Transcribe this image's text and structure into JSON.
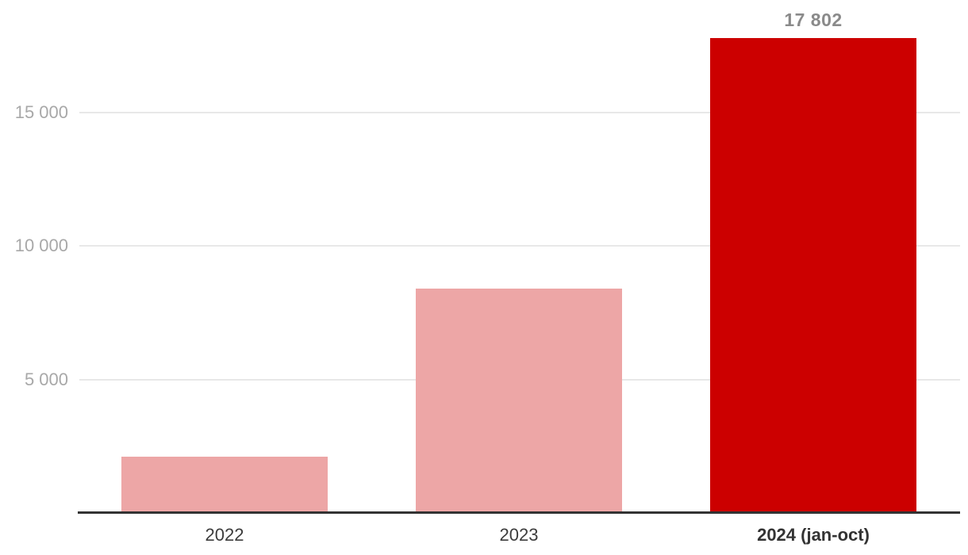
{
  "chart_data": {
    "type": "bar",
    "categories": [
      "2022",
      "2023",
      "2024 (jan-oct)"
    ],
    "values": [
      2100,
      8400,
      17802
    ],
    "value_labels": [
      "",
      "",
      "17 802"
    ],
    "title": "",
    "xlabel": "",
    "ylabel": "",
    "ylim": [
      0,
      18000
    ],
    "yticks": [
      {
        "value": 5000,
        "label": "5 000"
      },
      {
        "value": 10000,
        "label": "10 000"
      },
      {
        "value": 15000,
        "label": "15 000"
      }
    ],
    "grid": true,
    "legend": false,
    "highlight_index": 2,
    "bar_colors": [
      "#eda6a6",
      "#eda6a6",
      "#cc0000"
    ]
  },
  "colors": {
    "bar_default": "#eda6a6",
    "bar_highlight": "#cc0000",
    "gridline": "#e8e8e8",
    "axis_line": "#333333",
    "tick_label": "#a8a8a8",
    "x_label": "#3c3c3c",
    "value_label": "#8a8a8a"
  }
}
